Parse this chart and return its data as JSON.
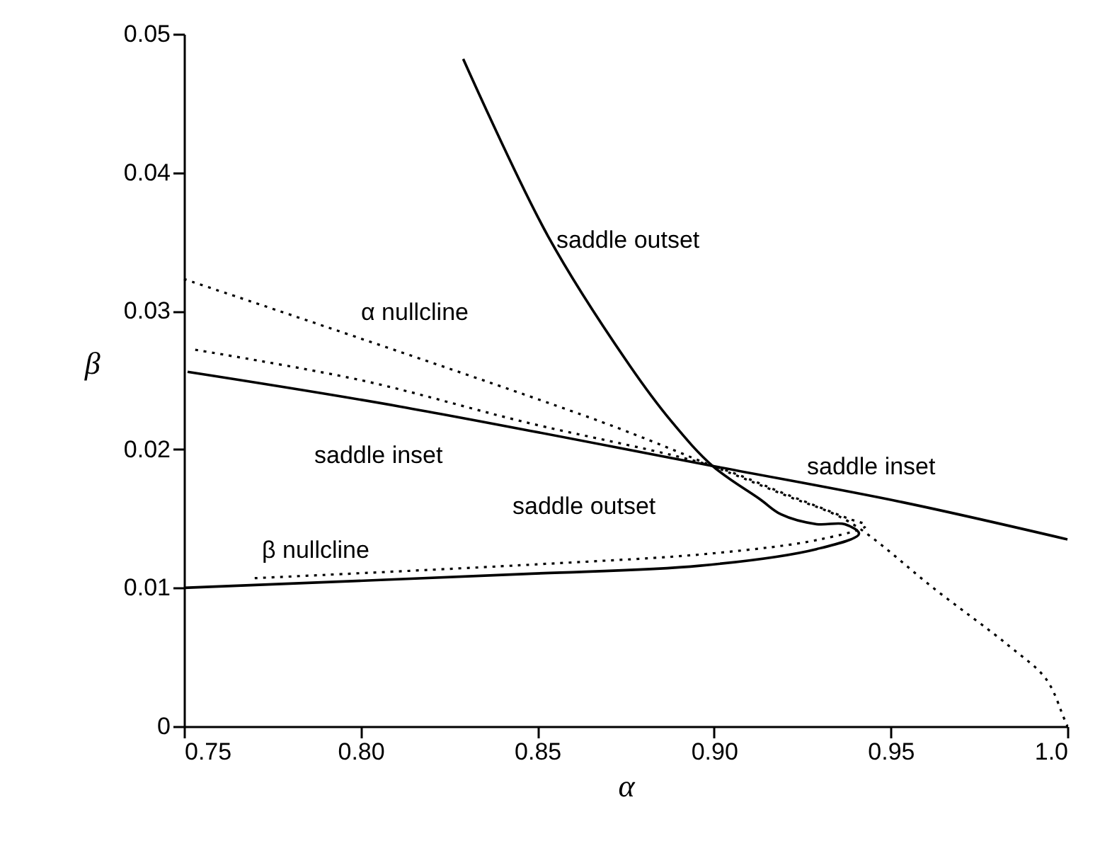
{
  "chart_data": {
    "type": "line",
    "xlabel": "α",
    "ylabel": "β",
    "xlim": [
      0.75,
      1.0
    ],
    "ylim": [
      0,
      0.05
    ],
    "xticks": [
      0.75,
      {
        "value": 0.8,
        "label": "0.80"
      },
      0.85,
      {
        "value": 0.9,
        "label": "0.90"
      },
      0.95,
      {
        "value": 1.0,
        "label": "1.0"
      }
    ],
    "yticks": [
      0,
      0.01,
      0.02,
      0.03,
      0.04,
      0.05
    ],
    "grid": false,
    "marker": "none",
    "series": [
      {
        "color": "#000000",
        "line_style": "solid",
        "x": [
          0.829,
          0.853,
          0.876,
          0.888,
          0.8996,
          0.913,
          0.919,
          0.929,
          0.937,
          0.941,
          0.929,
          0.896,
          0.846,
          0.75
        ],
        "values": [
          0.0482,
          0.0354,
          0.0261,
          0.022,
          0.0188,
          0.0164,
          0.0153,
          0.0146,
          0.0146,
          0.0139,
          0.0128,
          0.0116,
          0.011,
          0.01
        ]
      },
      {
        "color": "#000000",
        "line_style": "solid",
        "x": [
          0.751,
          0.811,
          0.8996,
          0.953,
          1.0
        ],
        "values": [
          0.0256,
          0.0231,
          0.0188,
          0.0162,
          0.0135
        ]
      },
      {
        "color": "#000000",
        "line_style": "dotted",
        "x": [
          0.75,
          0.868,
          0.8996,
          0.92,
          0.938,
          0.963,
          0.983,
          0.994,
          0.999,
          1.0
        ],
        "values": [
          0.0323,
          0.022,
          0.0188,
          0.0167,
          0.0148,
          0.0098,
          0.0059,
          0.0034,
          0.0006,
          0.0
        ]
      },
      {
        "color": "#000000",
        "line_style": "dotted",
        "x": [
          0.77,
          0.85,
          0.9,
          0.93,
          0.943,
          0.938,
          0.92,
          0.8996,
          0.846,
          0.8,
          0.753
        ],
        "values": [
          0.0107,
          0.0117,
          0.0125,
          0.0135,
          0.0145,
          0.015,
          0.0168,
          0.0188,
          0.022,
          0.025,
          0.0272
        ]
      }
    ],
    "annotations": [
      "saddle outset",
      "α nullcline",
      "saddle inset",
      "saddle inset",
      "saddle outset",
      "β nullcline"
    ]
  }
}
